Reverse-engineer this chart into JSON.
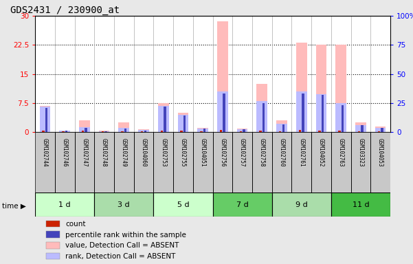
{
  "title": "GDS2431 / 230900_at",
  "samples": [
    "GSM102744",
    "GSM102746",
    "GSM102747",
    "GSM102748",
    "GSM102749",
    "GSM104060",
    "GSM102753",
    "GSM102755",
    "GSM104051",
    "GSM102756",
    "GSM102757",
    "GSM102758",
    "GSM102760",
    "GSM102761",
    "GSM104052",
    "GSM102763",
    "GSM103323",
    "GSM104053"
  ],
  "groups": [
    {
      "label": "1 d",
      "indices": [
        0,
        1,
        2
      ],
      "color": "#ccffcc"
    },
    {
      "label": "3 d",
      "indices": [
        3,
        4,
        5
      ],
      "color": "#aaddaa"
    },
    {
      "label": "5 d",
      "indices": [
        6,
        7,
        8
      ],
      "color": "#ccffcc"
    },
    {
      "label": "7 d",
      "indices": [
        9,
        10,
        11
      ],
      "color": "#66cc66"
    },
    {
      "label": "9 d",
      "indices": [
        12,
        13,
        14
      ],
      "color": "#aaddaa"
    },
    {
      "label": "11 d",
      "indices": [
        15,
        16,
        17
      ],
      "color": "#44bb44"
    }
  ],
  "value_absent": [
    6.8,
    0.4,
    3.0,
    0.3,
    2.5,
    0.7,
    7.5,
    5.0,
    1.0,
    28.5,
    0.8,
    12.5,
    3.0,
    23.0,
    22.5,
    22.5,
    2.5,
    1.5
  ],
  "rank_absent": [
    6.5,
    0.35,
    1.2,
    0.2,
    1.0,
    0.5,
    6.8,
    4.5,
    0.9,
    10.5,
    0.7,
    8.0,
    2.2,
    10.5,
    9.8,
    7.5,
    1.8,
    1.1
  ],
  "count": [
    0.3,
    0.15,
    0.35,
    0.1,
    0.25,
    0.15,
    0.3,
    0.3,
    0.25,
    0.5,
    0.25,
    0.4,
    0.25,
    0.5,
    0.4,
    0.3,
    0.25,
    0.25
  ],
  "pct_rank": [
    6.2,
    0.3,
    1.0,
    0.15,
    0.8,
    0.4,
    6.5,
    4.2,
    0.8,
    10.0,
    0.65,
    7.5,
    2.0,
    10.0,
    9.5,
    7.0,
    1.7,
    1.0
  ],
  "left_yticks": [
    0,
    7.5,
    15,
    22.5,
    30
  ],
  "right_yticklabels": [
    "0",
    "25",
    "50",
    "75",
    "100%"
  ],
  "ylim": [
    0,
    30
  ],
  "color_count": "#cc2200",
  "color_pct": "#4444bb",
  "color_value_absent": "#ffbbbb",
  "color_rank_absent": "#bbbbff",
  "legend_items": [
    {
      "label": "count",
      "color": "#cc2200"
    },
    {
      "label": "percentile rank within the sample",
      "color": "#4444bb"
    },
    {
      "label": "value, Detection Call = ABSENT",
      "color": "#ffbbbb"
    },
    {
      "label": "rank, Detection Call = ABSENT",
      "color": "#bbbbff"
    }
  ]
}
